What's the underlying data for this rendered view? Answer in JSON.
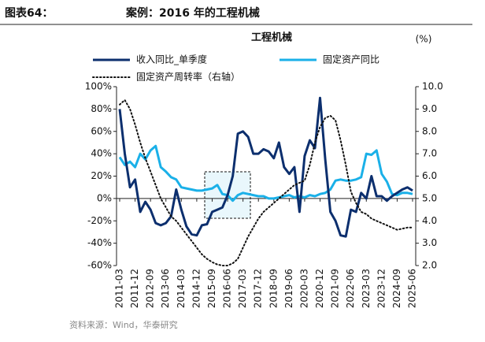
{
  "header": {
    "figure": "图表64：",
    "title": "案例：2016 年的工程机械"
  },
  "source": "资料来源：Wind，华泰研究",
  "chart_data": {
    "type": "line",
    "title": "工程机械",
    "unit_label": "(%)",
    "categories": [
      "2011-03",
      null,
      null,
      "2011-12",
      null,
      null,
      "2012-09",
      null,
      null,
      "2013-06",
      null,
      null,
      "2014-03",
      null,
      null,
      "2014-12",
      null,
      null,
      "2015-09",
      null,
      null,
      "2016-06",
      null,
      null,
      "2017-03",
      null,
      null,
      "2017-12",
      null,
      null,
      "2018-09",
      null,
      null,
      "2019-06",
      null,
      null,
      "2020-03",
      null,
      null,
      "2020-12",
      null,
      null,
      "2021-09",
      null,
      null,
      "2022-06",
      null,
      null,
      "2023-03",
      null,
      null,
      "2023-12",
      null,
      null,
      "2024-09",
      null,
      null,
      "2025-06"
    ],
    "series": [
      {
        "name": "收入同比_单季度",
        "color": "#0c2f6e",
        "values": [
          80,
          40,
          10,
          17,
          -12,
          -3,
          -10,
          -22,
          -24,
          -22,
          -16,
          8,
          -10,
          -25,
          -32,
          -33,
          -24,
          -23,
          -12,
          -10,
          -8,
          3,
          20,
          58,
          60,
          55,
          40,
          40,
          44,
          42,
          36,
          50,
          28,
          22,
          28,
          -12,
          38,
          52,
          45,
          90,
          35,
          -12,
          -20,
          -33,
          -34,
          -10,
          -12,
          5,
          0,
          20,
          2,
          2,
          -2,
          2,
          5,
          8,
          10,
          7
        ]
      },
      {
        "name": "固定资产同比",
        "color": "#1ab0e8",
        "values": [
          37,
          30,
          33,
          28,
          40,
          35,
          43,
          47,
          28,
          24,
          19,
          17,
          10,
          9,
          8,
          7,
          7,
          8,
          9,
          12,
          4,
          3,
          -2,
          3,
          5,
          4,
          3,
          2,
          2,
          0,
          0,
          1,
          2,
          3,
          1,
          2,
          1,
          3,
          2,
          4,
          5,
          8,
          16,
          17,
          16,
          16,
          17,
          19,
          40,
          39,
          43,
          22,
          15,
          4,
          3,
          5,
          5,
          4
        ]
      },
      {
        "name": "固定资产周转率（右轴）",
        "color": "#111111",
        "axis": "y2",
        "line_style": "dotted",
        "values": [
          9.2,
          9.4,
          9.0,
          8.3,
          7.5,
          6.8,
          6.2,
          5.6,
          5.0,
          4.6,
          4.2,
          4.0,
          3.7,
          3.4,
          3.1,
          2.8,
          2.5,
          2.3,
          2.15,
          2.05,
          2.0,
          2.0,
          2.1,
          2.3,
          2.8,
          3.3,
          3.7,
          4.1,
          4.4,
          4.6,
          4.8,
          5.0,
          5.2,
          5.4,
          5.6,
          5.7,
          5.8,
          6.5,
          7.5,
          8.2,
          8.6,
          8.7,
          8.5,
          7.6,
          6.5,
          5.3,
          4.8,
          4.4,
          4.3,
          4.1,
          4.0,
          3.9,
          3.8,
          3.7,
          3.6,
          3.65,
          3.7,
          3.7
        ]
      }
    ],
    "ylim": [
      -60,
      100
    ],
    "yticks": [
      {
        "value": 100,
        "label": "100%"
      },
      {
        "value": 80,
        "label": "80%"
      },
      {
        "value": 60,
        "label": "60%"
      },
      {
        "value": 40,
        "label": "40%"
      },
      {
        "value": 20,
        "label": "20%"
      },
      {
        "value": 0,
        "label": "0%"
      },
      {
        "value": -20,
        "label": "-20%"
      },
      {
        "value": -40,
        "label": "-40%"
      },
      {
        "value": -60,
        "label": "-60%"
      }
    ],
    "y2lim": [
      2,
      10
    ],
    "y2ticks": [
      {
        "value": 10,
        "label": "10.0"
      },
      {
        "value": 9,
        "label": "9.0"
      },
      {
        "value": 8,
        "label": "8.0"
      },
      {
        "value": 7,
        "label": "7.0"
      },
      {
        "value": 6,
        "label": "6.0"
      },
      {
        "value": 5,
        "label": "5.0"
      },
      {
        "value": 4,
        "label": "4.0"
      },
      {
        "value": 3,
        "label": "3.0"
      },
      {
        "value": 2,
        "label": "2.0"
      }
    ],
    "grid": false
  }
}
